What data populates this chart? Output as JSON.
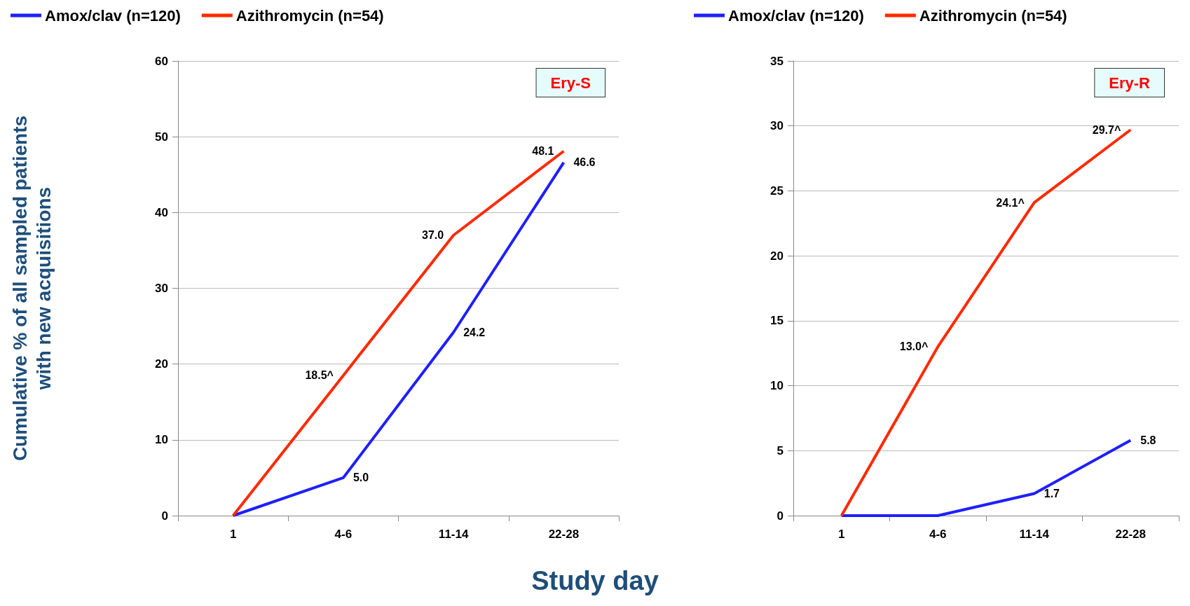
{
  "chart_data": [
    {
      "type": "line",
      "ylabel": "Cumulative % of all sampled patients with new acquisitions",
      "xlabel": "Study day",
      "categories": [
        "1",
        "4-6",
        "11-14",
        "22-28"
      ],
      "series": [
        {
          "name": "Amox/clav (n=120)",
          "color": "#1f1fff",
          "values": [
            0,
            5.0,
            24.2,
            46.6
          ],
          "value_labels": [
            null,
            "5.0",
            "24.2",
            "46.6"
          ]
        },
        {
          "name": "Azithromycin (n=54)",
          "color": "#ff2a00",
          "values": [
            0,
            18.5,
            37.0,
            48.1
          ],
          "value_labels": [
            null,
            "18.5^",
            "37.0",
            "48.1"
          ]
        }
      ],
      "ylim": [
        0,
        60
      ],
      "yticks": [
        0,
        10,
        20,
        30,
        40,
        50,
        60
      ],
      "grid": "y",
      "legend": "top",
      "marker": "none",
      "line_style": "solid",
      "annotations": [
        "Ery-S"
      ]
    },
    {
      "type": "line",
      "categories": [
        "1",
        "4-6",
        "11-14",
        "22-28"
      ],
      "series": [
        {
          "name": "Amox/clav (n=120)",
          "color": "#1f1fff",
          "values": [
            0,
            0,
            1.7,
            5.8
          ],
          "value_labels": [
            null,
            null,
            "1.7",
            "5.8"
          ]
        },
        {
          "name": "Azithromycin (n=54)",
          "color": "#ff2a00",
          "values": [
            0,
            13.0,
            24.1,
            29.7
          ],
          "value_labels": [
            null,
            "13.0^",
            "24.1^",
            "29.7^"
          ]
        }
      ],
      "ylim": [
        0,
        35
      ],
      "yticks": [
        0,
        5,
        10,
        15,
        20,
        25,
        30,
        35
      ],
      "grid": "y",
      "legend": "top",
      "marker": "none",
      "line_style": "solid",
      "annotations": [
        "Ery-R"
      ]
    }
  ]
}
